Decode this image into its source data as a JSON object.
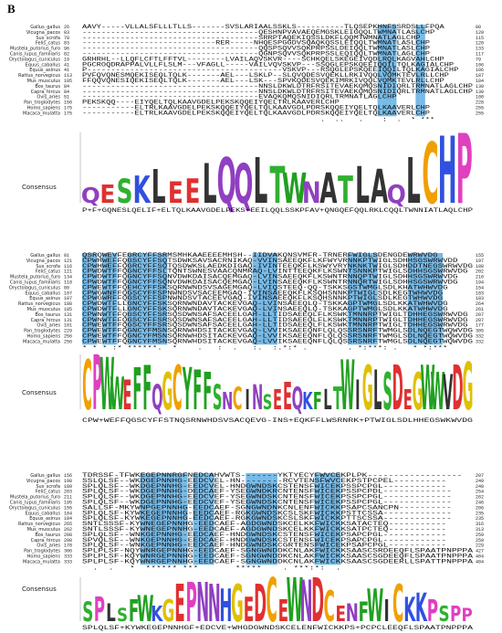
{
  "label": "B",
  "species": [
    "Gallus_gallus",
    "Vicugna_pacos",
    "Sus_scrofa",
    "Felis_catus",
    "Mustela_putorius_furo",
    "Canis_lupus_familiaris",
    "Oryctolagus_cuniculus",
    "Equus_caballus",
    "Equus_asinus",
    "Rattus_norvegicus",
    "Mus_musculus",
    "Bos_taurus",
    "Capra_hircus",
    "Ovis_aries",
    "Pan_troglodytes",
    "Homo_sapiens",
    "Macaca_mulatta"
  ],
  "blocks": [
    {
      "start": [
        26,
        83,
        78,
        83,
        96,
        82,
        19,
        41,
        41,
        113,
        105,
        84,
        84,
        51,
        150,
        175,
        175
      ],
      "end": [
        80,
        120,
        115,
        120,
        133,
        117,
        79,
        106,
        106,
        187,
        184,
        130,
        130,
        100,
        228,
        255,
        255
      ],
      "rows": [
        "AAVY-----VLLALSFLLLTLLS-------SVSLARIAALSSKLS----------TLQSEPKHNFSSRDSLLFPQA",
        "-------------------------------------QESHNPVAVAEQEMGSKLEIGQQLTWMNATLASLCHP",
        "-------------------------------------SRRPTAQEKIQSSLDKFLQQMTWMNATLAGLCHP",
        "----------------------------RER-----NHQESPGGDVSQAQKQSSLEIQQLTWMNATLASLCHP",
        "-------------------------------------QQSPSQVVSQKPRPSSLDEIQQLTWMNATLASLCHP",
        "-------------------------------------QGNPSQVVSQKPRPSSLEQIQQLTWMNATLAGLCHP",
        "GRHRHL--LLQFLCFTLFFTVL--------LVAILAQVSKVR----SCHKQELSKEGEIVQDLRQLKAGVAHLCHP",
        "PGCROQDRAPPALVLLFLSLM---VFAGLL-----VAILVQVSKVP---SSQGLEPSKQEEIQQILTQLKAGIALCHP",
        "P-----------------------------------------VSKVP---RSQGLEPSKQEEIQQILTQLKAGIALCHP",
        "PVFQVQNESMQEKISEQLTQLK-------AEL---LSKLP--SLQVQDESVQEKLLRKIVQQLVQMKTEVLRLLCHP",
        "FFQQVQNESIQEKISEQLTQLK-------AEL---LSK---SPVKQDESVQEKIMRKIVQQLVQMKTEVLRLLCHP",
        "-------------------------------------NNSLDKWLDTRFRSITEVAEKQMQSNIDIQRLTRMNATLAGLCHP",
        "-------------------------------------NNSLDKWLDTRFRSITEVAEKQMQSNIDIQRLTRMNATLAGLCHP",
        "-------------------------------------EVAQKQMQSNIDIQRLTRMNATLAGLCHP",
        "PEKSKQQ----EIYQELTQLKAAVGDELPEKSKQQEIYQELTRLKAAVERLCHP",
        "-----------ELTRLKAAVGDELPEKSKQQEIYQELTQLKAAVGDLPDRSKQQEIYQELTQLKAAVERLCHP",
        "-----------ELTRLKAAVGDELPEKSKQQEIYQELTQLKAAVGDLPDRSKQQEIYQELTQLKAAVERLCHP"
      ],
      "conserved_columns": [
        62,
        63,
        64,
        65,
        70,
        71
      ],
      "conservation": "                                                  .  ..   .    :  .  * ***",
      "consensus_label": "Consensus",
      "logo": {
        "letters": [
          "Q",
          "E",
          "S",
          "K",
          "L",
          "E",
          "E",
          "L",
          "Q",
          "Q",
          "L",
          "T",
          "W",
          "N",
          "A",
          "T",
          "L",
          "A",
          "Q",
          "L",
          "C",
          "H",
          "P"
        ],
        "heights": [
          10,
          12,
          16,
          18,
          22,
          14,
          16,
          26,
          30,
          26,
          30,
          24,
          20,
          14,
          20,
          18,
          24,
          22,
          12,
          30,
          40,
          44,
          46
        ]
      },
      "consensus": "P+F+GQNESLQELIF+ELTQLKAAVGDELPEKS+EEILQQLSSKPFAV+QNGQEFQQLRKLCQQLTWNNIATLAQLCHP"
    },
    {
      "start": [
        81,
        121,
        116,
        121,
        134,
        118,
        80,
        107,
        107,
        188,
        185,
        131,
        131,
        101,
        229,
        256,
        256
      ],
      "end": [
        155,
        197,
        188,
        202,
        210,
        194,
        154,
        183,
        183,
        264,
        261,
        207,
        207,
        177,
        305,
        332,
        332
      ],
      "rows": [
        "QSRQWEVFEGRCYFFSRMSMHKAAEEEEMHSH--IIDVAKQNSVMFR-TRNERFWIGLSDENGDEWRWVDG",
        "CPWHWEFFQGSCYFFSQTSDWKSAVSACRNIKAQ-VVINSAEEQKFLKFWYVRNNKPTWIGLSDHHSGSWRWVDD",
        "CPWHWEFFQGRCYFFSQTQSDWKSLAEDKDIGAQ-IVINTEEQKFLKSWYVRYNKNKTWIGLSDHDDTNEGSWRWVDG",
        "CPWDWTFFQGNCYFFSLTQNTSWNESVAACQNMRAQ-LVINTTEEQKFLKSWNTSNNKPTWIGLSDHHSGSWRWVDG",
        "CPWDWTFFQGNCYFFSQNVDWKDAISACQEMGAQ-LVINSAEEQKFLKSWNTRNNQPTWIGLSDHHSGSWRWVDG",
        "CPWDWTFFQGNCYFFSQNVDWKDAISACQEMGAQ-LVINSAEEQKFLKSWNTRNNQRTWIGLSDHHSGSWRWVDG",
        "CPWEWTFFQEHCYFFSKSQRNWNDSVSAGEMGAQ-LVIQSTEEQ-QQ-TSKKSGSTWMGLSDLKHATWHWVDG",
        "CPWGWNFFQGSCYFFSPNWNDSVSACEEMGAQ-IVINSAEEQKFLKSQHSNNKPTWIGLSDLKEGTWHWVDG",
        "CPWGWRFFQGSCYFFSPNWNDSVTACEEVGAQ-IVINSAEEQKFLKSQHSNNKPTWIGLSDLKEGTWHWVDG",
        "CPWDWTFLLGNCYFFSKSQRNWNDAVTACKEVGAQ-LVINSAEEQLQ-TSKKAGPTWMGLSDLKKATWHWVDG",
        "CPWDWTFLLGNCYFFSKSQRNWNDAVTACKEVGAQ-LVINSAEEQLQ-TSKKAGPTWMGLSDLKKATWHWVDG",
        "CPWNWTFFQGSCYFFSRSQSDWNSAFSACEELGAH-LLTIDSAEEQLFLKSWKTMNNRPTWIGLTDHHEGSWRWVDG",
        "CPWNWTFFQGSCYFFSRSQSDWNSAFSACEELGAH-LLTIDSAEEQLFLKSWKTMNNRPTWIGLTDHHEGSWRWVDG",
        "CPWEWTFFQGSCYFFSRSQSDWNSAFSACEELGAH-LLTIDSAEEQLFLKSWKTMNNRPTWIGLTDHHEGSWRWVDG",
        "CPWEWTFFQGNCYFMSNSQRNWHDSITACKEVGAQ-LVVIKSAEEQNFLQLQSSRSNRFTWMGLSDLNQEGTWQWVDG",
        "CPWEWTFFQGNCYFMSNSQRNWHDSITACKEVGAQ-LVVIKSAEEQNFLQLQSSRSNRFTWMGLSDLNQEGTWQWVDG",
        "CPWEWTFFQGNCYFMSNSQRNWHDSITACKEVGAQ-LVVIKSAEEQNFLQLQSSRSNRFTWMGLSDLNQEGTWQWVDG"
      ],
      "conserved_columns": [
        0,
        1,
        2,
        4,
        5,
        6,
        9,
        10,
        11,
        12,
        13,
        14,
        15,
        16,
        34,
        35,
        36,
        37,
        38,
        53,
        54,
        55,
        56,
        57,
        58,
        65,
        66,
        67,
        68,
        69,
        70,
        71
      ],
      "conservation": "* * * :* ******.  *    .   :  .   :.  :.*:* .        . *:***: .   * *:*** ",
      "consensus_label": "Consensus",
      "logo": {
        "letters": [
          "C",
          "P",
          "W",
          "W",
          "E",
          "F",
          "F",
          "Q",
          "G",
          "C",
          "Y",
          "F",
          "F",
          "S",
          "N",
          "C",
          "I",
          "N",
          "S",
          "E",
          "E",
          "Q",
          "K",
          "F",
          "L",
          "T",
          "W",
          "I",
          "G",
          "L",
          "S",
          "D",
          "E",
          "G",
          "W",
          "W",
          "V",
          "D",
          "G"
        ],
        "heights": [
          40,
          44,
          42,
          26,
          24,
          34,
          36,
          20,
          30,
          36,
          34,
          32,
          30,
          20,
          14,
          18,
          16,
          20,
          12,
          16,
          22,
          18,
          14,
          14,
          16,
          18,
          40,
          24,
          36,
          32,
          30,
          36,
          16,
          30,
          36,
          30,
          28,
          36,
          38
        ]
      },
      "consensus": "CPW+WEFFQGSCYFFSTNQSRNWHDSVSACQEVG-INS+EQKFFLWSRNRK+PTWIGLSDLHHEGSWKWVDG"
    },
    {
      "start": [
        156,
        198,
        189,
        203,
        211,
        195,
        155,
        184,
        184,
        265,
        262,
        208,
        208,
        178,
        306,
        333,
        333
      ],
      "end": [
        207,
        249,
        240,
        254,
        262,
        246,
        206,
        235,
        235,
        316,
        313,
        259,
        259,
        229,
        427,
        404,
        404
      ],
      "rows": [
        "TDRSSF-TFWKEGEPNNRGFNEDCAHVWTS-------YKTYECYFWVCEKPLPK------------------",
        "SSLQLSF--WKDGEPNNHG-EEDCVEL-HN--------RCVTENSFWVCEKPSTPCPEL----------",
        "SPLQLSF--WKDGEPNNHG-EEDCVEL-HNDGWNDSKCSTENSFWICEKPSSPCPGL------------",
        "SPLQLSF--WKDGEPNNHG-DEDCAEF-YSEGWNDKRCNTENSFWICEKPSSPCPDL-------------",
        "SPLQLSF--WKDGEPNNHG-EEDCVEF-YSEGWNDSKCNTENSFWICEKPSSPCPGL-------------",
        "SPLQLSF--WKDGEPNNHG-EEDCVEF-YSEGWNDSKCNTENSFWICEKPSSPCPGL-------------",
        "SALLSF-MKYWNPGEPNNHG-EEDCAEF-SGNGWNDNKCNLENFWICKKPSAPCSANCPN----------",
        "SPLQLSF-KYWKEGEPNNHG-EEDCAEF-RGKGWNDSKCSLSKFWICKKPSTTCSSA-------------",
        "SPLQLSF-KYWKEGEPNNHG-EEDCAEF-RGKGWNDSKCSLSKFWICKKPTTSCSSA-------------",
        "SNTLSSSF-KYWNEGEPNNHG-EEDCAEF-AGDGWNDSKCELKKFWICKKSATACTEQ-----------",
        "SNTLSSSF-KYWNEGEPNNHG-EEDCAEF-AGDGWNDSKCELKKFWICKKSATPCTEQ-----------",
        "SPLQLSF--WNKGEPNNHG-EEDCAEF-HNDGWNDSKCSTENSFWICEKPSAPCPGL------------",
        "SPVQLSF--WNKGEPNNHG-EEDCAEF-HNDGWNDSKCSTENSFWICEKPSAPCPGL------------",
        "SPLQLSF--WNKGEPNNHG-EEDCAEF-HNDGWNDSKCGRTENSFWICEKPSAPCPGL-----------",
        "SPLPLSF-NQYWNRGEPNNHG-EEDCAEF-SGNGWNDDKCNLAKFWICKKSAASCSRDEEQFLSPAATPNPPPA",
        "SPLPLSF-KQYWNRGEPNNHG-EEDCAEF-SGNGWNDDKCNLAKFWICKKSAASCSGDEEQFLSPAATPNPPPA",
        "SPLPLSF-KQYWNRGEPNNHG-EEDCAEF-SGNGWNDDKCNLAKFWICKKSAASCSGDEERLLSPATTPNPPPA"
      ],
      "conserved_columns": [
        11,
        12,
        13,
        14,
        15,
        16,
        17,
        18,
        19,
        21,
        22,
        23,
        24,
        31,
        32,
        33,
        34,
        35,
        36,
        44,
        45,
        46,
        47,
        48
      ],
      "conservation": "  .  .   *  ****** ***       *****    . ***:*:  .                   ",
      "consensus_label": "Consensus",
      "logo": {
        "letters": [
          "S",
          "P",
          "L",
          "S",
          "F",
          "W",
          "K",
          "G",
          "E",
          "P",
          "N",
          "N",
          "H",
          "G",
          "E",
          "D",
          "C",
          "E",
          "W",
          "N",
          "D",
          "C",
          "E",
          "N",
          "F",
          "W",
          "I",
          "C",
          "K",
          "K",
          "P",
          "S",
          "P",
          "P"
        ],
        "heights": [
          18,
          22,
          16,
          12,
          20,
          24,
          14,
          20,
          34,
          36,
          36,
          34,
          30,
          34,
          22,
          34,
          40,
          20,
          40,
          38,
          40,
          28,
          14,
          16,
          18,
          30,
          20,
          34,
          22,
          26,
          20,
          14,
          14,
          12
        ]
      },
      "consensus": "SPLQLSF+KYWKEGEPNNHGF+EDCVE+WHGDGWNDSKCELENFWICKKPS+PCPCLEEQFLSPAATPNPPPA"
    }
  ]
}
